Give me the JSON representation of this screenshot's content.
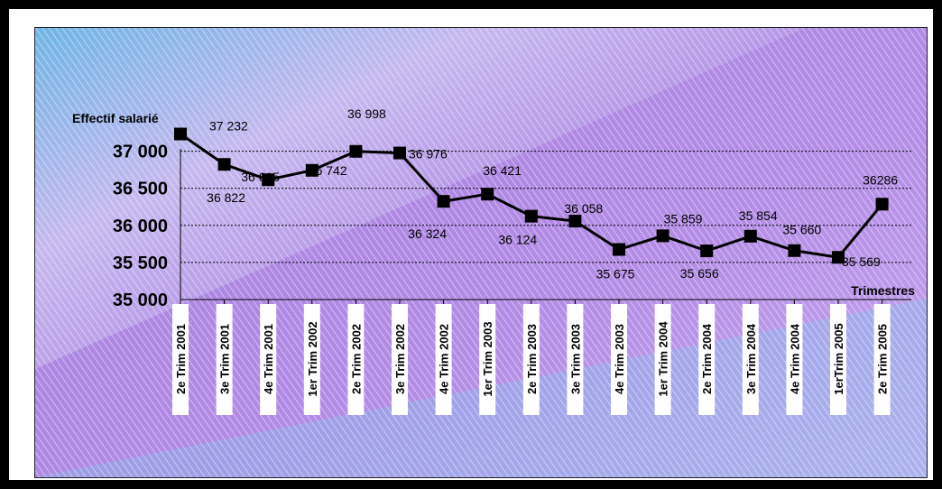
{
  "chart_data": {
    "type": "line",
    "title": "",
    "ylabel": "Effectif salarié",
    "xlabel": "Trimestres",
    "ylim": [
      35000,
      37000
    ],
    "y_ticks": [
      "37 000",
      "36 500",
      "36 000",
      "35 500",
      "35 000"
    ],
    "y_tick_values": [
      37000,
      36500,
      36000,
      35500,
      35000
    ],
    "grid": true,
    "colors": {
      "line": "#000000",
      "grid": "#000000",
      "label": "#000000"
    },
    "categories": [
      "2e Trim 2001",
      "3e Trim 2001",
      "4e Trim 2001",
      "1er Trim 2002",
      "2e Trim 2002",
      "3e Trim 2002",
      "4e Trim 2002",
      "1er Trim 2003",
      "2e Trim 2003",
      "3e Trim 2003",
      "4e Trim 2003",
      "1er Trim 2004",
      "2e Trim 2004",
      "3e Trim 2004",
      "4e Trim 2004",
      "1erTrim 2005",
      "2e Trim 2005"
    ],
    "values": [
      37232,
      36822,
      36615,
      36742,
      36998,
      36976,
      36324,
      36421,
      36124,
      36058,
      35675,
      35859,
      35656,
      35854,
      35660,
      35569,
      36286
    ],
    "data_labels": [
      "37 232",
      "36 822",
      "36 615",
      "36 742",
      "36 998",
      "36 976",
      "36 324",
      "36 421",
      "36 124",
      "36 058",
      "35 675",
      "35 859",
      "35 656",
      "35 854",
      "35 660",
      "35 569",
      "36286"
    ]
  }
}
